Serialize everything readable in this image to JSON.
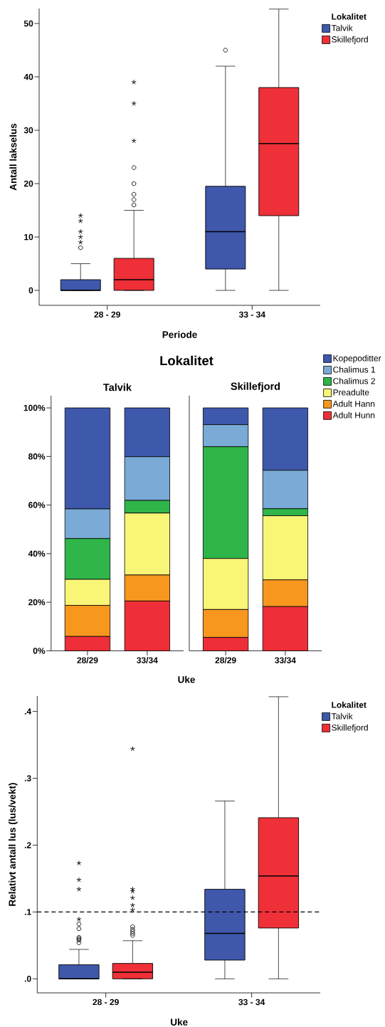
{
  "chart_data": [
    {
      "type": "box",
      "xlabel": "Periode",
      "ylabel": "Antall lakselus",
      "legend_title": "Lokalitet",
      "legend": "top right",
      "categories": [
        "28 - 29",
        "33 - 34"
      ],
      "ylim": [
        -2.8,
        52.8
      ],
      "yticks": [
        0,
        10,
        20,
        30,
        40,
        50
      ],
      "series": [
        {
          "name": "Talvik",
          "color": "#3f58ab",
          "boxes": [
            {
              "low": 0,
              "q1": 0,
              "median": 0,
              "q3": 2,
              "high": 5,
              "outliers": [
                8,
                9,
                10,
                11,
                13,
                14
              ]
            },
            {
              "low": 0,
              "q1": 4,
              "median": 11,
              "q3": 19.5,
              "high": 42,
              "outliers": [
                45
              ]
            }
          ]
        },
        {
          "name": "Skillefjord",
          "color": "#ef3038",
          "boxes": [
            {
              "low": 0,
              "q1": 0,
              "median": 2,
              "q3": 6,
              "high": 15,
              "outliers": [
                16,
                17,
                18,
                20,
                23,
                28,
                35,
                39
              ]
            },
            {
              "low": 0,
              "q1": 14,
              "median": 27.5,
              "q3": 38,
              "high": 52.7
            }
          ]
        }
      ]
    },
    {
      "type": "bar",
      "stacked": true,
      "title": "Lokalitet",
      "subtitle": "Talvik",
      "xlabel": "Uke",
      "categories": [
        "28/29",
        "33/34"
      ],
      "ylim": [
        0,
        105
      ],
      "yticks": [
        {
          "value": 0,
          "label": "0%"
        },
        {
          "value": 20,
          "label": "20%"
        },
        {
          "value": 40,
          "label": "40%"
        },
        {
          "value": 60,
          "label": "60%"
        },
        {
          "value": 80,
          "label": "80%"
        },
        {
          "value": 100,
          "label": "100%"
        }
      ],
      "series": [
        {
          "color": "#ee2e38",
          "values": [
            5.9,
            20.5
          ]
        },
        {
          "color": "#f7971e",
          "values": [
            12.8,
            10.7
          ]
        },
        {
          "color": "#f9f577",
          "values": [
            10.7,
            25.5
          ]
        },
        {
          "color": "#2fb54a",
          "values": [
            16.8,
            5.2
          ]
        },
        {
          "color": "#7aaad6",
          "values": [
            12.2,
            18.0
          ]
        },
        {
          "color": "#3e58ac",
          "values": [
            41.6,
            20.1
          ]
        }
      ]
    },
    {
      "type": "bar",
      "stacked": true,
      "subtitle": "Skillefjord",
      "categories": [
        "28/29",
        "33/34"
      ],
      "ylim": [
        0,
        105
      ],
      "tick_labels": "x",
      "legend": "top right",
      "series": [
        {
          "name": "Adult Hunn",
          "color": "#ee2e38",
          "values": [
            5.5,
            18.2
          ]
        },
        {
          "name": "Adult Hann",
          "color": "#f7971e",
          "values": [
            11.5,
            11.0
          ]
        },
        {
          "name": "Preadulte",
          "color": "#f9f577",
          "values": [
            21.0,
            26.4
          ]
        },
        {
          "name": "Chalimus 2",
          "color": "#2fb54a",
          "values": [
            46.0,
            2.9
          ]
        },
        {
          "name": "Chalimus 1",
          "color": "#7aaad6",
          "values": [
            9.1,
            15.8
          ]
        },
        {
          "name": "Kopepoditter",
          "color": "#3e58ac",
          "values": [
            6.9,
            25.7
          ]
        }
      ]
    },
    {
      "type": "box",
      "xlabel": "Uke",
      "ylabel": "Relativt antall lus (lus/vekt)",
      "legend_title": "Lokalitet",
      "legend": "top right",
      "categories": [
        "28 - 29",
        "33 - 34"
      ],
      "ylim": [
        -0.021,
        0.423
      ],
      "yticks": [
        {
          "value": 0,
          "label": ".0"
        },
        {
          "value": 0.1,
          "label": ".1"
        },
        {
          "value": 0.2,
          "label": ".2"
        },
        {
          "value": 0.3,
          "label": ".3"
        },
        {
          "value": 0.4,
          "label": ".4"
        }
      ],
      "ref_lines": [
        {
          "axis": "y",
          "value": 0.1,
          "line_style": "dashed",
          "color": "#000000"
        }
      ],
      "series": [
        {
          "name": "Talvik",
          "color": "#3f58ab",
          "boxes": [
            {
              "low": 0,
              "q1": 0,
              "median": 0,
              "q3": 0.021,
              "high": 0.044,
              "outliers": [
                0.054,
                0.058,
                0.06,
                0.062,
                0.075,
                0.082,
                0.089,
                0.134,
                0.148,
                0.173
              ]
            },
            {
              "low": 0,
              "q1": 0.028,
              "median": 0.068,
              "q3": 0.134,
              "high": 0.266
            }
          ]
        },
        {
          "name": "Skillefjord",
          "color": "#ef3038",
          "boxes": [
            {
              "low": 0,
              "q1": 0,
              "median": 0.01,
              "q3": 0.023,
              "high": 0.057,
              "outliers": [
                0.065,
                0.068,
                0.071,
                0.074,
                0.078,
                0.103,
                0.11,
                0.121,
                0.131,
                0.134,
                0.344
              ]
            },
            {
              "low": 0,
              "q1": 0.076,
              "median": 0.154,
              "q3": 0.241,
              "high": 0.422
            }
          ]
        }
      ]
    }
  ]
}
